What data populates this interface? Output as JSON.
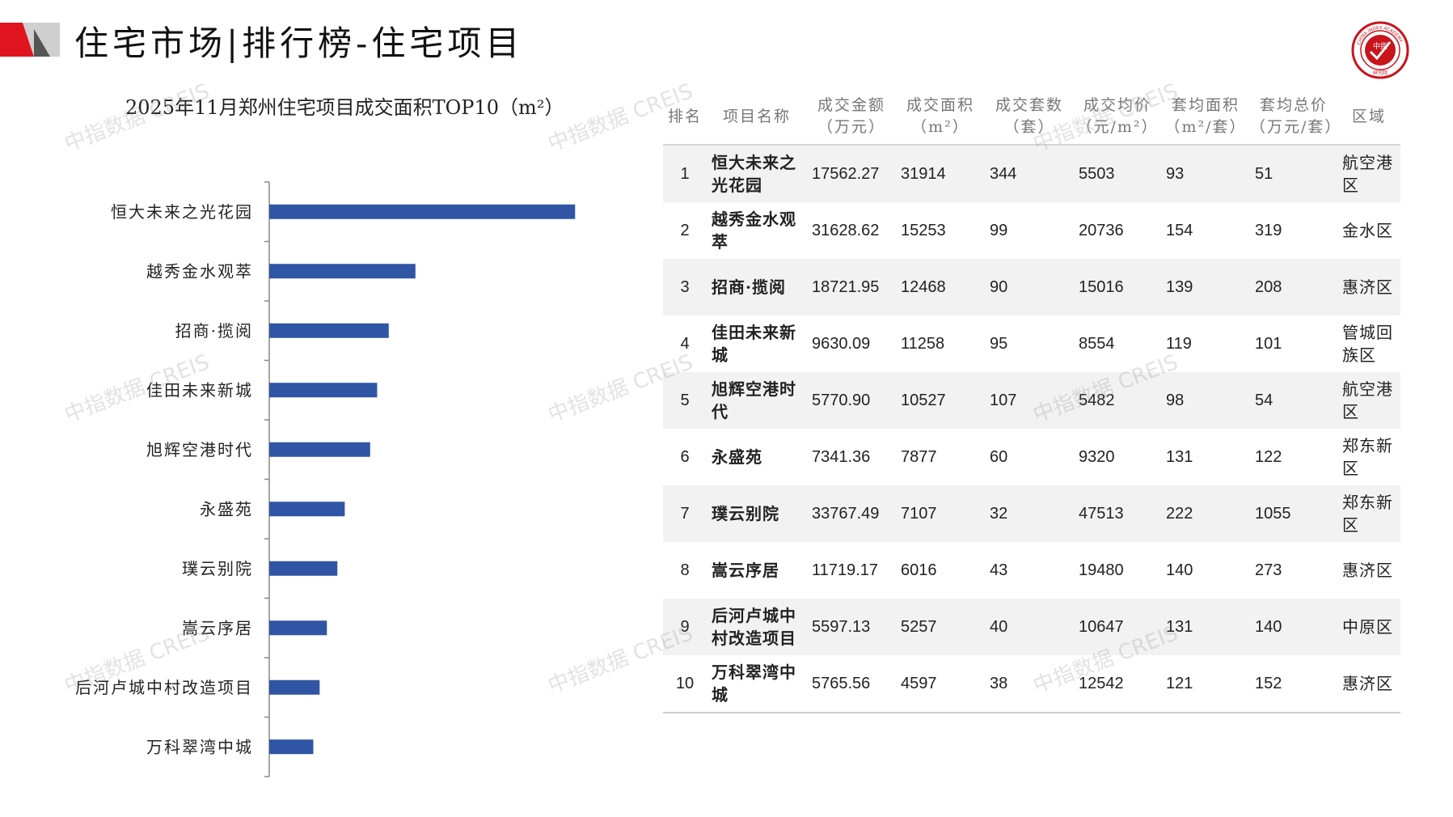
{
  "page": {
    "title": "住宅市场|排行榜-住宅项目",
    "watermark": "中指数据 CREIS",
    "colors": {
      "accent_red": "#e0141e",
      "bar_blue": "#2f55a4",
      "logo_red": "#c8141b"
    }
  },
  "logo": {
    "text_center": "中指",
    "text_bottom": "研究院",
    "ring_text": "CHINA INDEX ACADEMY"
  },
  "chart_data": {
    "type": "bar",
    "orientation": "horizontal",
    "title": "2025年11月郑州住宅项目成交面积TOP10（m²）",
    "categories": [
      "恒大未来之光花园",
      "越秀金水观萃",
      "招商·揽阅",
      "佳田未来新城",
      "旭辉空港时代",
      "永盛苑",
      "璞云别院",
      "嵩云序居",
      "后河卢城中村改造项目",
      "万科翠湾中城"
    ],
    "values": [
      31914,
      15253,
      12468,
      11258,
      10527,
      7877,
      7107,
      6016,
      5257,
      4597
    ],
    "xlim": [
      0,
      34000
    ],
    "grid": false,
    "legend": "none"
  },
  "table": {
    "headers": [
      {
        "line1": "排名",
        "line2": ""
      },
      {
        "line1": "项目名称",
        "line2": ""
      },
      {
        "line1": "成交金额",
        "line2": "（万元）"
      },
      {
        "line1": "成交面积",
        "line2": "（m²）"
      },
      {
        "line1": "成交套数",
        "line2": "（套）"
      },
      {
        "line1": "成交均价",
        "line2": "（元/m²）"
      },
      {
        "line1": "套均面积",
        "line2": "（m²/套）"
      },
      {
        "line1": "套均总价",
        "line2": "（万元/套）"
      },
      {
        "line1": "区域",
        "line2": ""
      }
    ],
    "rows": [
      {
        "rank": "1",
        "name": "恒大未来之光花园",
        "amount": "17562.27",
        "area": "31914",
        "units": "344",
        "price": "5503",
        "avg_area": "93",
        "avg_total": "51",
        "district": "航空港区"
      },
      {
        "rank": "2",
        "name": "越秀金水观萃",
        "amount": "31628.62",
        "area": "15253",
        "units": "99",
        "price": "20736",
        "avg_area": "154",
        "avg_total": "319",
        "district": "金水区"
      },
      {
        "rank": "3",
        "name": "招商·揽阅",
        "amount": "18721.95",
        "area": "12468",
        "units": "90",
        "price": "15016",
        "avg_area": "139",
        "avg_total": "208",
        "district": "惠济区"
      },
      {
        "rank": "4",
        "name": "佳田未来新城",
        "amount": "9630.09",
        "area": "11258",
        "units": "95",
        "price": "8554",
        "avg_area": "119",
        "avg_total": "101",
        "district": "管城回族区"
      },
      {
        "rank": "5",
        "name": "旭辉空港时代",
        "amount": "5770.90",
        "area": "10527",
        "units": "107",
        "price": "5482",
        "avg_area": "98",
        "avg_total": "54",
        "district": "航空港区"
      },
      {
        "rank": "6",
        "name": "永盛苑",
        "amount": "7341.36",
        "area": "7877",
        "units": "60",
        "price": "9320",
        "avg_area": "131",
        "avg_total": "122",
        "district": "郑东新区"
      },
      {
        "rank": "7",
        "name": "璞云别院",
        "amount": "33767.49",
        "area": "7107",
        "units": "32",
        "price": "47513",
        "avg_area": "222",
        "avg_total": "1055",
        "district": "郑东新区"
      },
      {
        "rank": "8",
        "name": "嵩云序居",
        "amount": "11719.17",
        "area": "6016",
        "units": "43",
        "price": "19480",
        "avg_area": "140",
        "avg_total": "273",
        "district": "惠济区"
      },
      {
        "rank": "9",
        "name": "后河卢城中村改造项目",
        "amount": "5597.13",
        "area": "5257",
        "units": "40",
        "price": "10647",
        "avg_area": "131",
        "avg_total": "140",
        "district": "中原区"
      },
      {
        "rank": "10",
        "name": "万科翠湾中城",
        "amount": "5765.56",
        "area": "4597",
        "units": "38",
        "price": "12542",
        "avg_area": "121",
        "avg_total": "152",
        "district": "惠济区"
      }
    ]
  }
}
